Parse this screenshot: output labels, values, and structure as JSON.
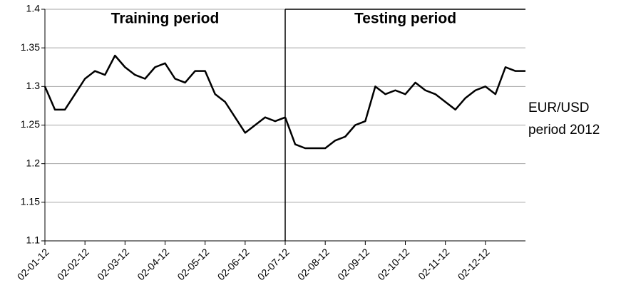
{
  "chart_data": {
    "type": "line",
    "annotation": [
      "EUR/USD",
      "period 2012"
    ],
    "categories": [
      "02-01-12",
      null,
      null,
      null,
      "02-02-12",
      null,
      null,
      null,
      "02-03-12",
      null,
      null,
      null,
      "02-04-12",
      null,
      null,
      null,
      "02-05-12",
      null,
      null,
      null,
      "02-06-12",
      null,
      null,
      null,
      "02-07-12",
      null,
      null,
      null,
      "02-08-12",
      null,
      null,
      null,
      "02-09-12",
      null,
      null,
      null,
      "02-10-12",
      null,
      null,
      null,
      "02-11-12",
      null,
      null,
      null,
      "02-12-12",
      null,
      null,
      null,
      null
    ],
    "series": [
      {
        "name": "Training period",
        "color": "#000000",
        "values": [
          1.3,
          1.27,
          1.27,
          1.29,
          1.31,
          1.32,
          1.315,
          1.34,
          1.325,
          1.315,
          1.31,
          1.325,
          1.33,
          1.31,
          1.305,
          1.32,
          1.32,
          1.29,
          1.28,
          1.26,
          1.24,
          1.25,
          1.26,
          1.255,
          1.26,
          null,
          null,
          null,
          null,
          null,
          null,
          null,
          null,
          null,
          null,
          null,
          null,
          null,
          null,
          null,
          null,
          null,
          null,
          null,
          null,
          null,
          null,
          null,
          null
        ]
      },
      {
        "name": "Testing period",
        "color": "#000000",
        "values": [
          null,
          null,
          null,
          null,
          null,
          null,
          null,
          null,
          null,
          null,
          null,
          null,
          null,
          null,
          null,
          null,
          null,
          null,
          null,
          null,
          null,
          null,
          null,
          null,
          1.26,
          1.225,
          1.22,
          1.22,
          1.22,
          1.23,
          1.235,
          1.25,
          1.255,
          1.3,
          1.29,
          1.295,
          1.29,
          1.305,
          1.295,
          1.29,
          1.28,
          1.27,
          1.285,
          1.295,
          1.3,
          1.29,
          1.325,
          1.32,
          1.32
        ]
      }
    ],
    "ylim": [
      1.1,
      1.4
    ],
    "yticks": [
      1.1,
      1.15,
      1.2,
      1.25,
      1.3,
      1.35,
      1.4
    ],
    "grid": true
  }
}
